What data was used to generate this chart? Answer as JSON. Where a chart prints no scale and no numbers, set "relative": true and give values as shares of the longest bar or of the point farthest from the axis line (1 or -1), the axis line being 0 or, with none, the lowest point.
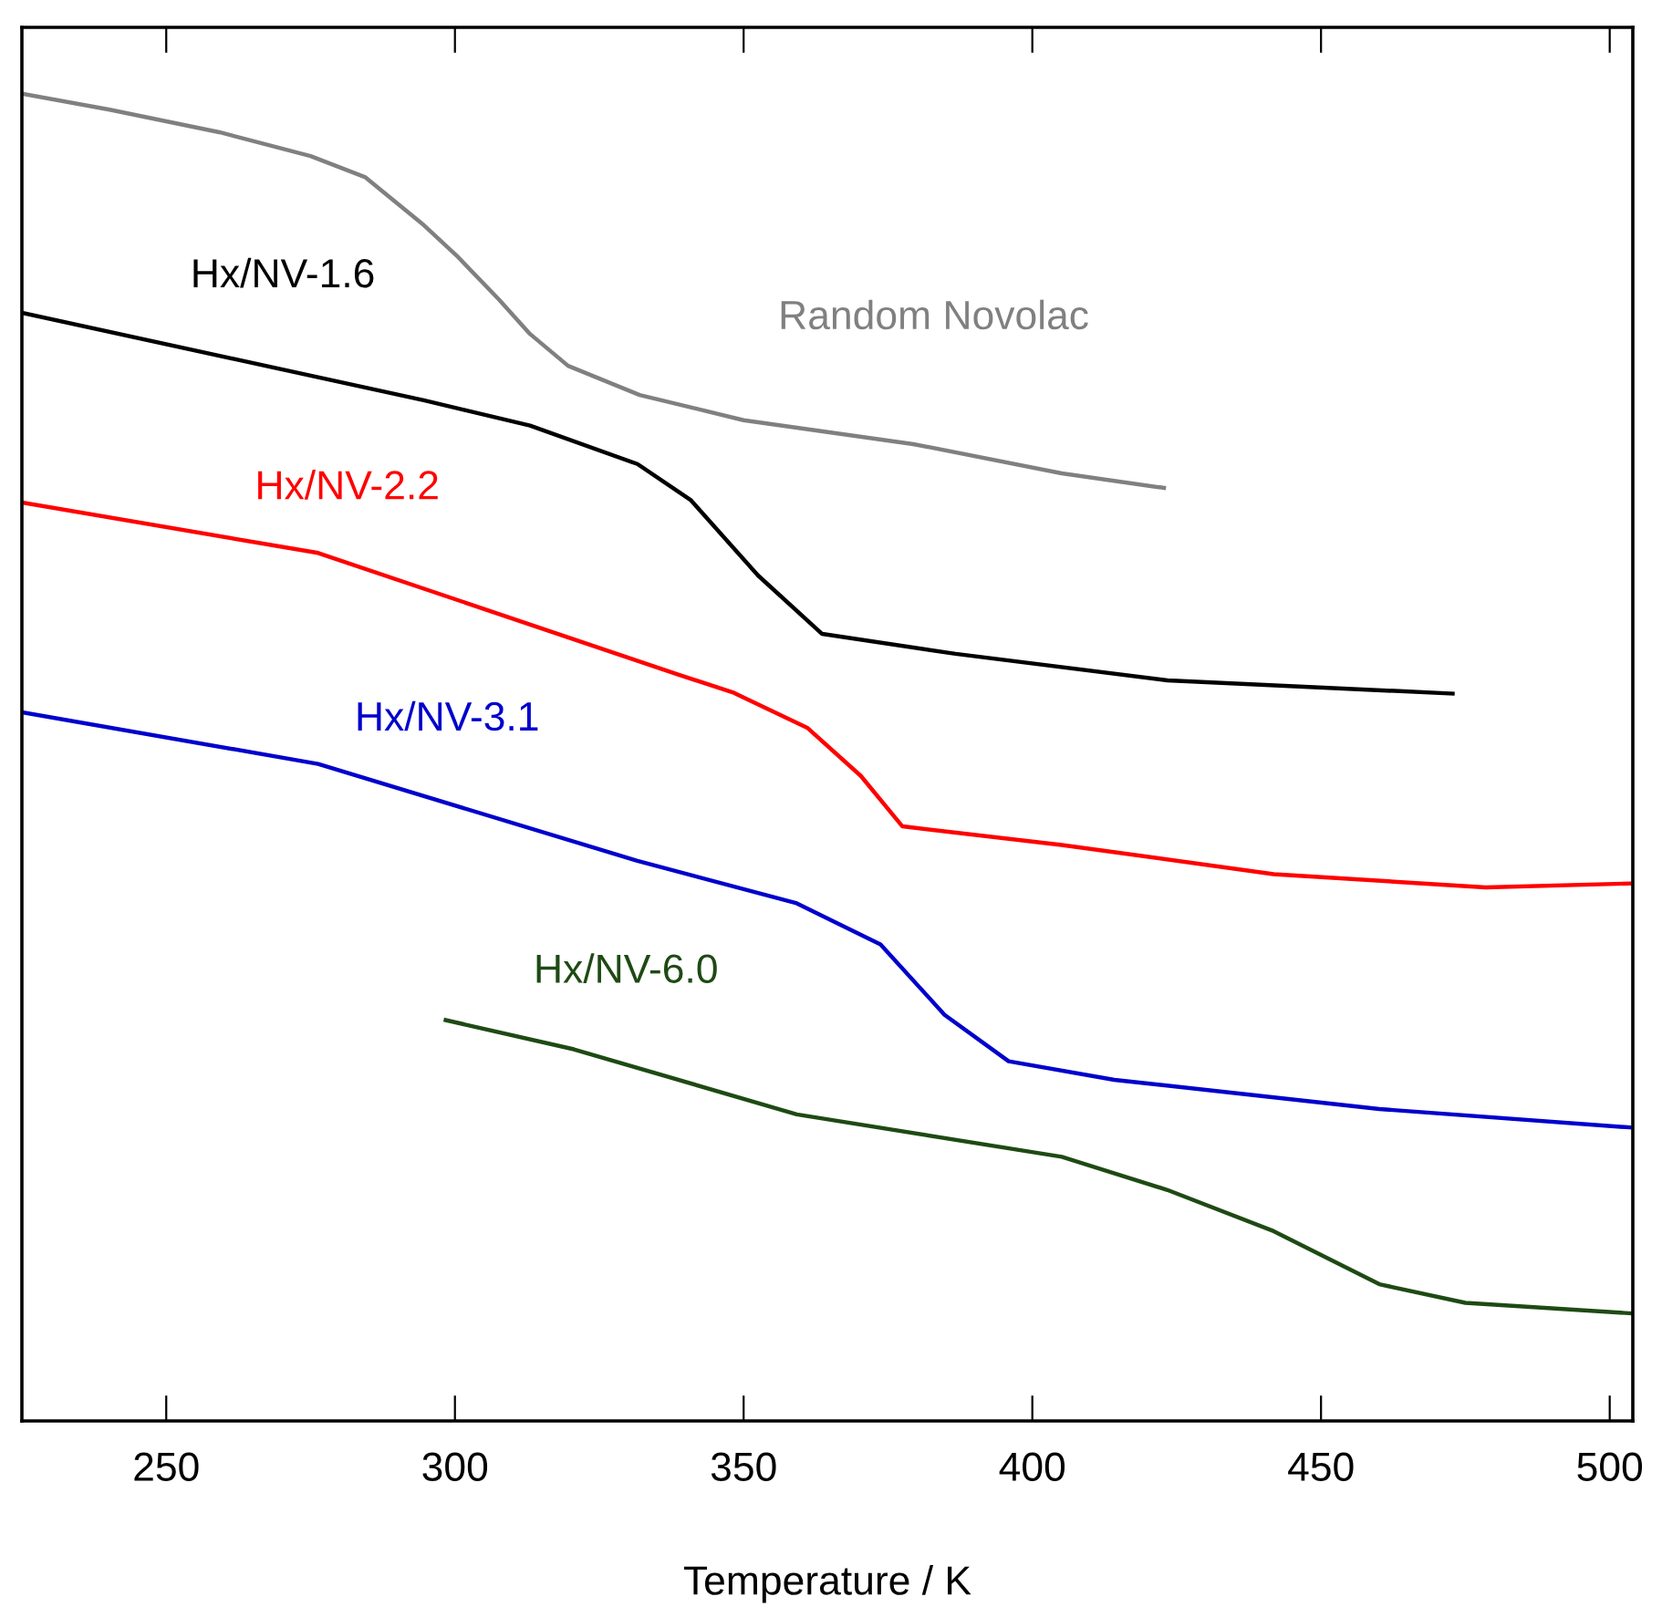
{
  "chart_data": {
    "type": "line",
    "xlabel": "Temperature / K",
    "relative": true,
    "xlim": [
      225,
      504
    ],
    "xticks": [
      250,
      300,
      350,
      400,
      450,
      500
    ],
    "tick_labels": "x",
    "grid": false,
    "legend": false,
    "marker": "none",
    "line_style": "solid",
    "series": [
      {
        "name": "Random Novolac",
        "color": "#808080",
        "x": [
          225.0,
          240.2,
          259.2,
          275.0,
          284.5,
          294.6,
          300.3,
          307.6,
          313.0,
          319.6,
          332.0,
          350.0,
          379.4,
          405.1,
          422.8
        ],
        "values": [
          1.0,
          0.988,
          0.971,
          0.953,
          0.937,
          0.901,
          0.878,
          0.845,
          0.819,
          0.795,
          0.773,
          0.754,
          0.736,
          0.714,
          0.703
        ]
      },
      {
        "name": "Hx/NV-1.6",
        "color": "#000000",
        "x": [
          225.0,
          294.6,
          313.0,
          331.6,
          340.8,
          352.5,
          363.6,
          386.7,
          423.4,
          472.8
        ],
        "values": [
          0.835,
          0.769,
          0.75,
          0.721,
          0.694,
          0.637,
          0.593,
          0.578,
          0.558,
          0.548
        ]
      },
      {
        "name": "Hx/NV-2.2",
        "color": "#ff0000",
        "x": [
          225.0,
          276.3,
          338.9,
          348.1,
          361.1,
          370.3,
          377.5,
          405.1,
          441.8,
          478.5,
          504.0
        ],
        "values": [
          0.692,
          0.654,
          0.562,
          0.549,
          0.522,
          0.486,
          0.448,
          0.434,
          0.412,
          0.402,
          0.405
        ]
      },
      {
        "name": "Hx/NV-3.1",
        "color": "#0000cc",
        "x": [
          225.0,
          276.3,
          331.6,
          359.2,
          373.7,
          384.8,
          395.9,
          414.2,
          460.1,
          504.0
        ],
        "values": [
          0.534,
          0.495,
          0.422,
          0.39,
          0.359,
          0.306,
          0.271,
          0.257,
          0.235,
          0.221
        ]
      },
      {
        "name": "Hx/NV-6.0",
        "color": "#1e4a14",
        "x": [
          298.4,
          320.6,
          359.2,
          405.1,
          423.4,
          441.8,
          460.1,
          475.0,
          504.0
        ],
        "values": [
          0.302,
          0.28,
          0.231,
          0.199,
          0.174,
          0.143,
          0.103,
          0.089,
          0.081
        ]
      }
    ]
  }
}
